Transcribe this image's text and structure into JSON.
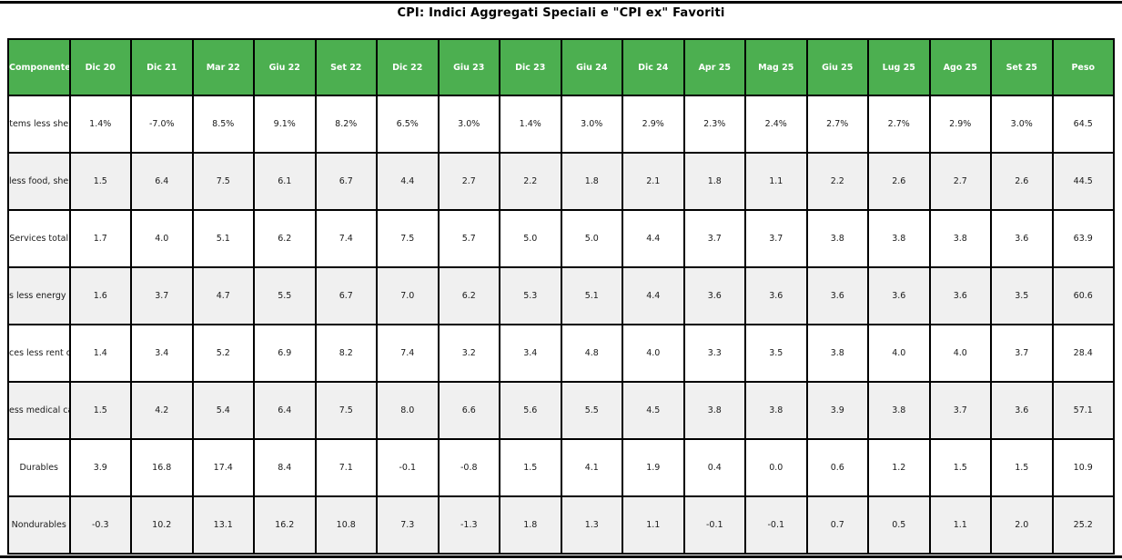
{
  "title": "CPI: Indici Aggregati Speciali e \"CPI ex\" Favoriti",
  "colors": {
    "header_bg": "#4CAF50",
    "header_text": "#ffffff",
    "row_bg": "#ffffff",
    "row_alt_bg": "#f0f0f0",
    "border": "#000000",
    "title_text": "#000000"
  },
  "chart_data": {
    "type": "table",
    "title": "CPI: Indici Aggregati Speciali e \"CPI ex\" Favoriti",
    "columns": [
      "Componente",
      "Dic 20",
      "Dic 21",
      "Mar 22",
      "Giu 22",
      "Set 22",
      "Dic 22",
      "Giu 23",
      "Dic 23",
      "Giu 24",
      "Dic 24",
      "Apr 25",
      "Mag 25",
      "Giu 25",
      "Lug 25",
      "Ago 25",
      "Set 25",
      "Peso"
    ],
    "rows": [
      {
        "label": "tems less she",
        "values": [
          "1.4%",
          "-7.0%",
          "8.5%",
          "9.1%",
          "8.2%",
          "6.5%",
          "3.0%",
          "1.4%",
          "3.0%",
          "2.9%",
          "2.3%",
          "2.4%",
          "2.7%",
          "2.7%",
          "2.9%",
          "3.0%",
          "64.5"
        ]
      },
      {
        "label": "less food, shelt",
        "values": [
          "1.5",
          "6.4",
          "7.5",
          "6.1",
          "6.7",
          "4.4",
          "2.7",
          "2.2",
          "1.8",
          "2.1",
          "1.8",
          "1.1",
          "2.2",
          "2.6",
          "2.7",
          "2.6",
          "44.5"
        ]
      },
      {
        "label": "Services total",
        "values": [
          "1.7",
          "4.0",
          "5.1",
          "6.2",
          "7.4",
          "7.5",
          "5.7",
          "5.0",
          "5.0",
          "4.4",
          "3.7",
          "3.7",
          "3.8",
          "3.8",
          "3.8",
          "3.6",
          "63.9"
        ]
      },
      {
        "label": "s less energy s",
        "values": [
          "1.6",
          "3.7",
          "4.7",
          "5.5",
          "6.7",
          "7.0",
          "6.2",
          "5.3",
          "5.1",
          "4.4",
          "3.6",
          "3.6",
          "3.6",
          "3.6",
          "3.6",
          "3.5",
          "60.6"
        ]
      },
      {
        "label": "ces less rent of",
        "values": [
          "1.4",
          "3.4",
          "5.2",
          "6.9",
          "8.2",
          "7.4",
          "3.2",
          "3.4",
          "4.8",
          "4.0",
          "3.3",
          "3.5",
          "3.8",
          "4.0",
          "4.0",
          "3.7",
          "28.4"
        ]
      },
      {
        "label": "ess medical ca",
        "values": [
          "1.5",
          "4.2",
          "5.4",
          "6.4",
          "7.5",
          "8.0",
          "6.6",
          "5.6",
          "5.5",
          "4.5",
          "3.8",
          "3.8",
          "3.9",
          "3.8",
          "3.7",
          "3.6",
          "57.1"
        ]
      },
      {
        "label": "Durables",
        "values": [
          "3.9",
          "16.8",
          "17.4",
          "8.4",
          "7.1",
          "-0.1",
          "-0.8",
          "1.5",
          "4.1",
          "1.9",
          "0.4",
          "0.0",
          "0.6",
          "1.2",
          "1.5",
          "1.5",
          "10.9"
        ]
      },
      {
        "label": "Nondurables",
        "values": [
          "-0.3",
          "10.2",
          "13.1",
          "16.2",
          "10.8",
          "7.3",
          "-1.3",
          "1.8",
          "1.3",
          "1.1",
          "-0.1",
          "-0.1",
          "0.7",
          "0.5",
          "1.1",
          "2.0",
          "25.2"
        ]
      }
    ]
  }
}
